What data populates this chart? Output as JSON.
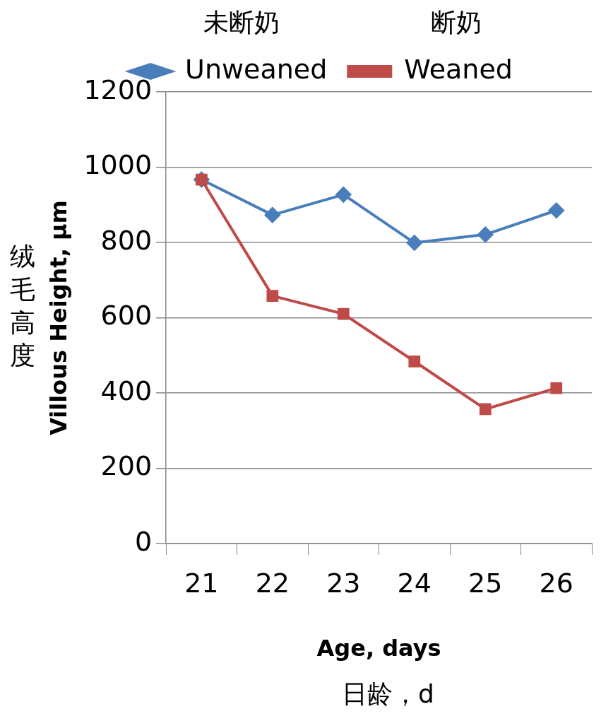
{
  "chart_data": {
    "type": "line",
    "categories": [
      "21",
      "22",
      "23",
      "24",
      "25",
      "26"
    ],
    "series": [
      {
        "name": "Unweaned",
        "color": "#4a7ebb",
        "marker": "diamond",
        "values": [
          967,
          873,
          927,
          799,
          821,
          885
        ]
      },
      {
        "name": "Weaned",
        "color": "#be4b48",
        "marker": "square",
        "values": [
          967,
          658,
          610,
          484,
          357,
          413
        ]
      }
    ],
    "xlabel": "Age, days",
    "ylabel": "Villous Height, µm",
    "ylim": [
      0,
      1200
    ],
    "yticks": [
      0,
      200,
      400,
      600,
      800,
      1000,
      1200
    ],
    "grid": "y",
    "legend": "top",
    "line_style": "solid",
    "annotations": [
      "未断奶",
      "断奶",
      "绒毛高度",
      "日龄，d"
    ]
  }
}
